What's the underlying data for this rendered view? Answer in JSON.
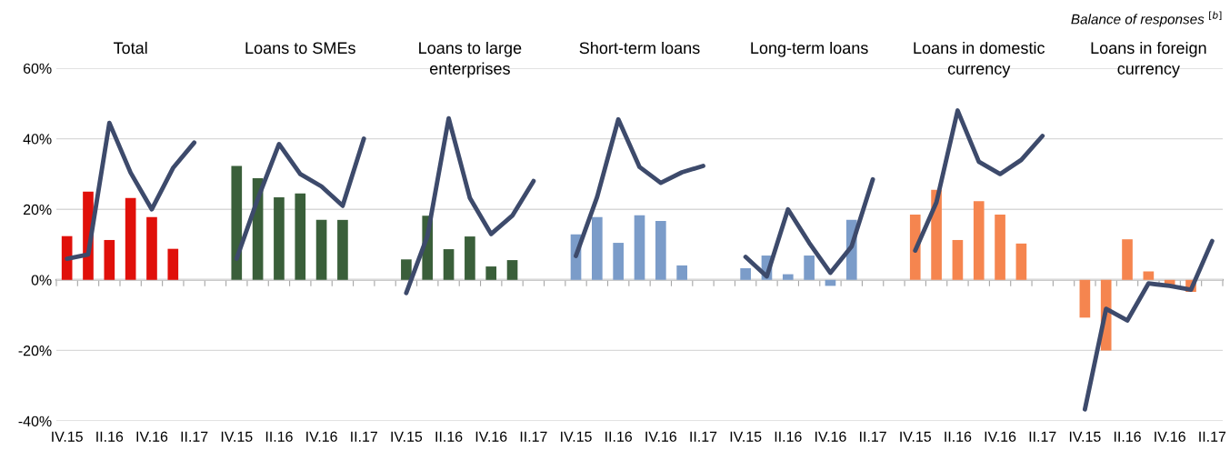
{
  "chart_data": {
    "type": "bar",
    "categories": [
      "IV.15",
      null,
      "II.16",
      null,
      "IV.16",
      null,
      "II.17",
      null,
      "IV.15",
      null,
      "II.16",
      null,
      "IV.16",
      null,
      "II.17",
      null,
      "IV.15",
      null,
      "II.16",
      null,
      "IV.16",
      null,
      "II.17",
      null,
      "IV.15",
      null,
      "II.16",
      null,
      "IV.16",
      null,
      "II.17",
      null,
      "IV.15",
      null,
      "II.16",
      null,
      "IV.16",
      null,
      "II.17",
      null,
      "IV.15",
      null,
      "II.16",
      null,
      "IV.16",
      null,
      "II.17",
      null,
      "IV.15",
      null,
      "II.16",
      null,
      "IV.16",
      null,
      "II.17"
    ],
    "ylim": [
      -40,
      60
    ],
    "yticks": [
      {
        "value": -40,
        "label": "-40%"
      },
      {
        "value": -20,
        "label": "-20%"
      },
      {
        "value": 0,
        "label": "0%"
      },
      {
        "value": 20,
        "label": "20%"
      },
      {
        "value": 40,
        "label": "40%"
      },
      {
        "value": 60,
        "label": "60%"
      }
    ],
    "grid": "y",
    "annotations": [
      "Total",
      "Loans to SMEs",
      "Loans to large\nenterprises",
      "Short-term loans",
      "Long-term loans",
      "Loans in domestic\ncurrency",
      "Loans in foreign\ncurrency",
      "Balance of responses $^{[b]}$"
    ],
    "series": [
      {
        "values": [
          12.4,
          25,
          11.3,
          23.2,
          17.8,
          8.8,
          null,
          null,
          32.3,
          28.8,
          23.4,
          24.5,
          17,
          17,
          null,
          null,
          5.8,
          18.2,
          8.7,
          12.3,
          3.8,
          5.6,
          null,
          null,
          12.9,
          17.8,
          10.5,
          18.3,
          16.7,
          4.1,
          null,
          null,
          3.3,
          6.9,
          1.6,
          6.9,
          -1.7,
          17,
          null,
          null,
          18.5,
          25.5,
          11.3,
          22.3,
          18.5,
          10.3,
          null,
          null,
          -10.7,
          -20,
          11.5,
          2.4,
          -1.5,
          -3.4,
          null
        ],
        "colors": [
          "#e0100a",
          "#e0100a",
          "#e0100a",
          "#e0100a",
          "#e0100a",
          "#e0100a",
          null,
          null,
          "#3a5f3a",
          "#3a5f3a",
          "#3a5f3a",
          "#3a5f3a",
          "#3a5f3a",
          "#3a5f3a",
          null,
          null,
          "#3a5f3a",
          "#3a5f3a",
          "#3a5f3a",
          "#3a5f3a",
          "#3a5f3a",
          "#3a5f3a",
          null,
          null,
          "#7b9cc9",
          "#7b9cc9",
          "#7b9cc9",
          "#7b9cc9",
          "#7b9cc9",
          "#7b9cc9",
          null,
          null,
          "#7b9cc9",
          "#7b9cc9",
          "#7b9cc9",
          "#7b9cc9",
          "#7b9cc9",
          "#7b9cc9",
          null,
          null,
          "#f5854f",
          "#f5854f",
          "#f5854f",
          "#f5854f",
          "#f5854f",
          "#f5854f",
          null,
          null,
          "#f5854f",
          "#f5854f",
          "#f5854f",
          "#f5854f",
          "#f5854f",
          "#f5854f",
          null
        ]
      },
      {
        "type": "line",
        "color": "#3d4a6b",
        "values": [
          6,
          7.2,
          44.5,
          30.4,
          20,
          31.7,
          38.9,
          null,
          6,
          23,
          38.5,
          30,
          26.5,
          21,
          40,
          null,
          -3.7,
          12.5,
          45.8,
          23.2,
          13,
          18.2,
          28,
          null,
          6.8,
          23.5,
          45.5,
          32,
          27.5,
          30.5,
          32.3,
          null,
          6.5,
          1,
          20,
          10.5,
          2,
          9.5,
          28.5,
          null,
          8.3,
          22,
          48,
          33.5,
          30,
          34,
          40.8,
          null,
          -36.7,
          -8.2,
          -11.5,
          -1,
          -1.7,
          -2.8,
          11
        ]
      }
    ]
  }
}
